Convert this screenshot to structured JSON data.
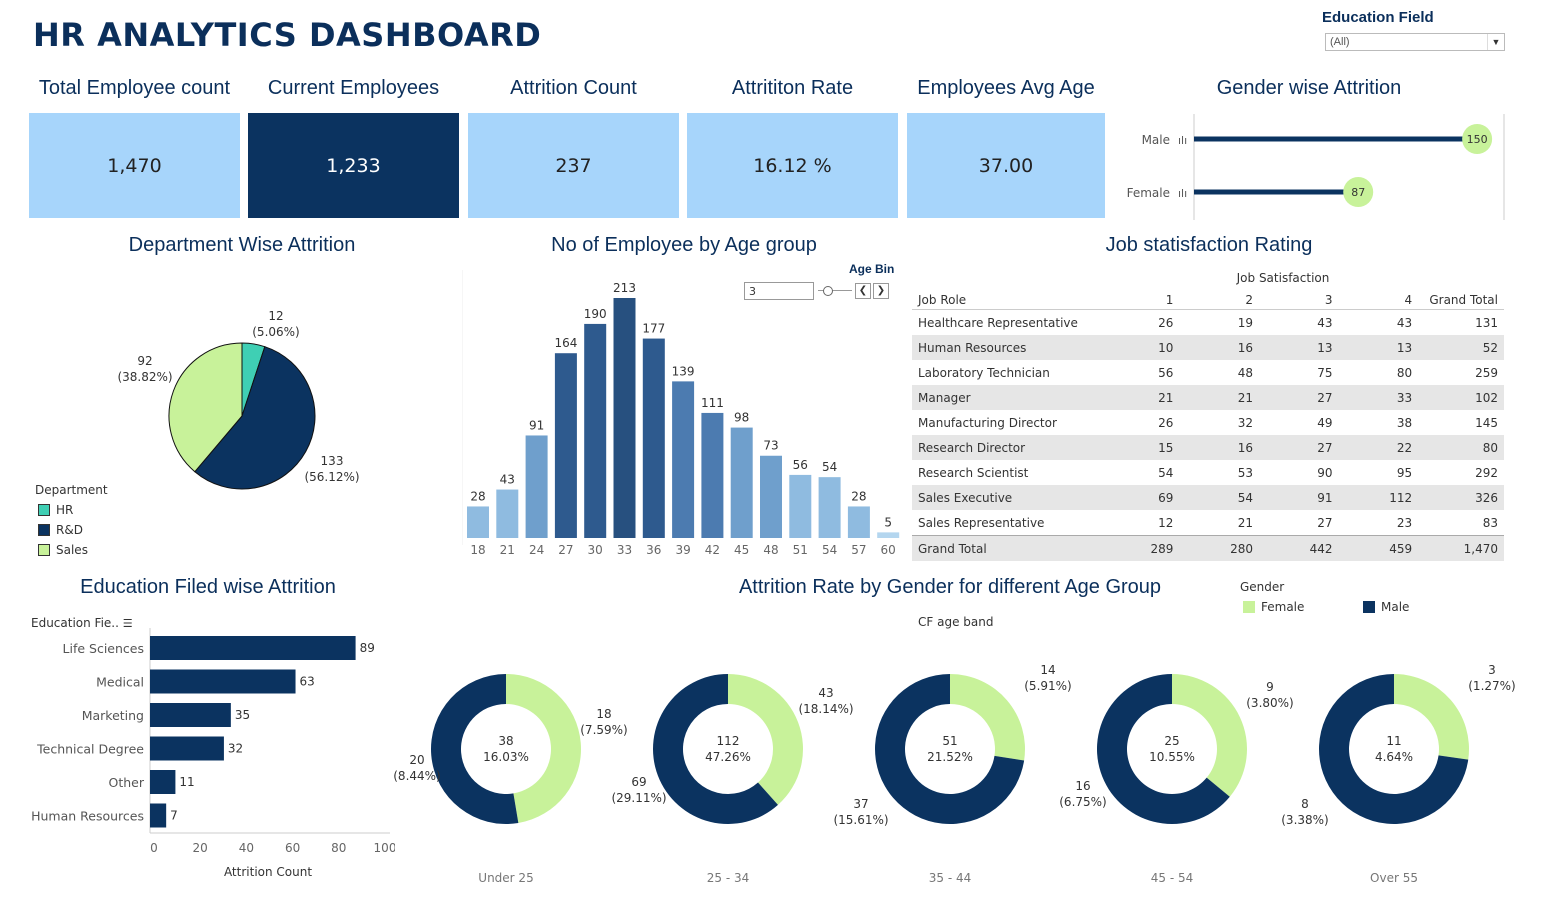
{
  "header": {
    "title": "HR ANALYTICS DASHBOARD"
  },
  "filter": {
    "label": "Education Field",
    "value": "(All)"
  },
  "kpis": [
    {
      "label": "Total Employee count",
      "value": "1,470"
    },
    {
      "label": "Current Employees",
      "value": "1,233"
    },
    {
      "label": "Attrition Count",
      "value": "237"
    },
    {
      "label": "Attrititon Rate",
      "value": "16.12 %"
    },
    {
      "label": "Employees Avg Age",
      "value": "37.00"
    }
  ],
  "colors": {
    "navy": "#0b3360",
    "light_blue": "#a7d5fb",
    "light_green": "#c8f29a",
    "teal": "#3fcfb4"
  },
  "gender_attrition": {
    "title": "Gender wise Attrition",
    "chart_data": {
      "type": "bar",
      "categories": [
        "Male",
        "Female"
      ],
      "values": [
        150,
        87
      ]
    }
  },
  "dept": {
    "title": "Department Wise Attrition",
    "legend_title": "Department",
    "chart_data": {
      "type": "pie",
      "categories": [
        "HR",
        "R&D",
        "Sales"
      ],
      "values": [
        12,
        133,
        92
      ],
      "percent_labels": [
        "(5.06%)",
        "(56.12%)",
        "(38.82%)"
      ]
    }
  },
  "age": {
    "title": "No of Employee by Age group",
    "bin_label": "Age Bin",
    "bin_value": "3",
    "chart_data": {
      "type": "bar",
      "categories": [
        "18",
        "21",
        "24",
        "27",
        "30",
        "33",
        "36",
        "39",
        "42",
        "45",
        "48",
        "51",
        "54",
        "57",
        "60"
      ],
      "values": [
        28,
        43,
        91,
        164,
        190,
        213,
        177,
        139,
        111,
        98,
        73,
        56,
        54,
        28,
        5
      ]
    }
  },
  "job": {
    "title": "Job statisfaction Rating",
    "col_group": "Job Satisfaction",
    "headers": [
      "Job Role",
      "1",
      "2",
      "3",
      "4",
      "Grand Total"
    ],
    "rows": [
      [
        "Healthcare Representative",
        "26",
        "19",
        "43",
        "43",
        "131"
      ],
      [
        "Human Resources",
        "10",
        "16",
        "13",
        "13",
        "52"
      ],
      [
        "Laboratory Technician",
        "56",
        "48",
        "75",
        "80",
        "259"
      ],
      [
        "Manager",
        "21",
        "21",
        "27",
        "33",
        "102"
      ],
      [
        "Manufacturing Director",
        "26",
        "32",
        "49",
        "38",
        "145"
      ],
      [
        "Research Director",
        "15",
        "16",
        "27",
        "22",
        "80"
      ],
      [
        "Research Scientist",
        "54",
        "53",
        "90",
        "95",
        "292"
      ],
      [
        "Sales Executive",
        "69",
        "54",
        "91",
        "112",
        "326"
      ],
      [
        "Sales Representative",
        "12",
        "21",
        "27",
        "23",
        "83"
      ]
    ],
    "total": [
      "Grand Total",
      "289",
      "280",
      "442",
      "459",
      "1,470"
    ]
  },
  "edu": {
    "title": "Education Filed wise Attrition",
    "col_header": "Education Fie..",
    "xlabel": "Attrition Count",
    "chart_data": {
      "type": "bar",
      "categories": [
        "Life Sciences",
        "Medical",
        "Marketing",
        "Technical Degree",
        "Other",
        "Human Resources"
      ],
      "values": [
        89,
        63,
        35,
        32,
        11,
        7
      ],
      "xlim": [
        0,
        100
      ],
      "xticks": [
        "0",
        "20",
        "40",
        "60",
        "80",
        "100"
      ]
    }
  },
  "donuts": {
    "title": "Attrition Rate by Gender for different Age Group",
    "band_label": "CF age band",
    "legend_title": "Gender",
    "legend": [
      "Female",
      "Male"
    ],
    "chart_data": {
      "type": "pie",
      "groups": [
        {
          "band": "Under 25",
          "total": "38",
          "rate": "16.03%",
          "female": 18,
          "female_pct": "(7.59%)",
          "male": 20,
          "male_pct": "(8.44%)"
        },
        {
          "band": "25 - 34",
          "total": "112",
          "rate": "47.26%",
          "female": 43,
          "female_pct": "(18.14%)",
          "male": 69,
          "male_pct": "(29.11%)"
        },
        {
          "band": "35 - 44",
          "total": "51",
          "rate": "21.52%",
          "female": 14,
          "female_pct": "(5.91%)",
          "male": 37,
          "male_pct": "(15.61%)"
        },
        {
          "band": "45 - 54",
          "total": "25",
          "rate": "10.55%",
          "female": 9,
          "female_pct": "(3.80%)",
          "male": 16,
          "male_pct": "(6.75%)"
        },
        {
          "band": "Over 55",
          "total": "11",
          "rate": "4.64%",
          "female": 3,
          "female_pct": "(1.27%)",
          "male": 8,
          "male_pct": "(3.38%)"
        }
      ]
    }
  }
}
